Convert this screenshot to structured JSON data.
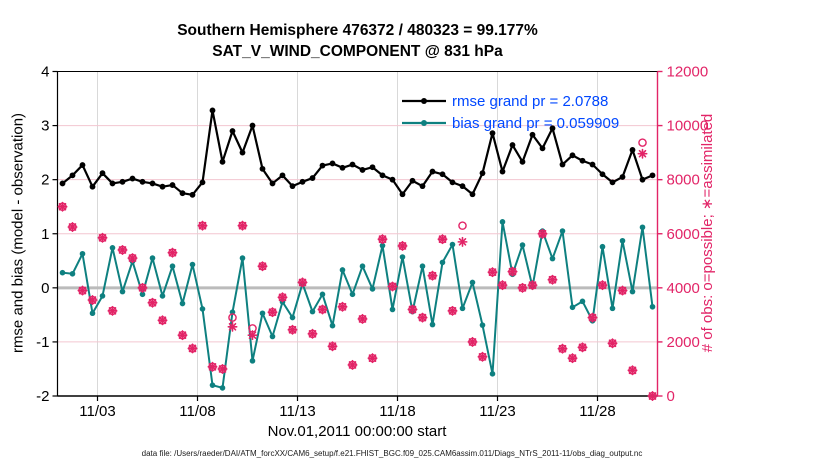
{
  "title": {
    "line1": "Southern Hemisphere 476372 / 480323 = 99.177%",
    "line2": "SAT_V_WIND_COMPONENT @ 831 hPa"
  },
  "legend": [
    {
      "label": "rmse grand pr = 2.0788",
      "series": "rmse"
    },
    {
      "label": "bias grand pr = 0.059909",
      "series": "bias"
    }
  ],
  "axes": {
    "left": {
      "label": "rmse and bias (model - observation)",
      "ticks": [
        4,
        3,
        2,
        1,
        0,
        -1,
        -2
      ],
      "range": [
        -2,
        4
      ]
    },
    "right": {
      "label": "# of obs: o=possible; ∗=assimilated",
      "ticks": [
        0,
        2000,
        4000,
        6000,
        8000,
        10000,
        12000
      ],
      "range": [
        0,
        12000
      ]
    },
    "x": {
      "label": "Nov.01,2011 00:00:00 start",
      "tick_labels": [
        "11/03",
        "11/08",
        "11/13",
        "11/18",
        "11/23",
        "11/28"
      ],
      "tick_days": [
        2,
        7,
        12,
        17,
        22,
        27
      ],
      "range_days": [
        0,
        30
      ]
    }
  },
  "footer": "data file: /Users/raeder/DAI/ATM_forcXX/CAM6_setup/f.e21.FHIST_BGC.f09_025.CAM6assim.011/Diags_NTrS_2011-11/obs_diag_output.nc",
  "colors": {
    "rmse": "#000000",
    "bias": "#0e8080",
    "obs": "#e22467",
    "legend_text": "#0047ff",
    "grid_pink": "#f3c6d0",
    "grid_vertical": "#d9d9d9",
    "zero_line": "#bbbbbb",
    "axis_black": "#000000"
  },
  "chart_data": {
    "type": "line",
    "title": "Southern Hemisphere 476372 / 480323 = 99.177% — SAT_V_WIND_COMPONENT @ 831 hPa",
    "xlabel": "Nov.01,2011 00:00:00 start",
    "ylabel_left": "rmse and bias (model - observation)",
    "ylabel_right": "# of obs: o=possible; ∗=assimilated",
    "ylim_left": [
      -2,
      4
    ],
    "ylim_right": [
      0,
      12000
    ],
    "grid": "on",
    "legend_position": "upper-right-inside",
    "x_days": [
      0.25,
      0.75,
      1.25,
      1.75,
      2.25,
      2.75,
      3.25,
      3.75,
      4.25,
      4.75,
      5.25,
      5.75,
      6.25,
      6.75,
      7.25,
      7.75,
      8.25,
      8.75,
      9.25,
      9.75,
      10.25,
      10.75,
      11.25,
      11.75,
      12.25,
      12.75,
      13.25,
      13.75,
      14.25,
      14.75,
      15.25,
      15.75,
      16.25,
      16.75,
      17.25,
      17.75,
      18.25,
      18.75,
      19.25,
      19.75,
      20.25,
      20.75,
      21.25,
      21.75,
      22.25,
      22.75,
      23.25,
      23.75,
      24.25,
      24.75,
      25.25,
      25.75,
      26.25,
      26.75,
      27.25,
      27.75,
      28.25,
      28.75,
      29.25,
      29.75
    ],
    "series": [
      {
        "name": "rmse",
        "axis": "left",
        "values": [
          1.93,
          2.08,
          2.27,
          1.87,
          2.12,
          1.93,
          1.96,
          2.02,
          1.96,
          1.93,
          1.87,
          1.9,
          1.75,
          1.72,
          1.95,
          3.28,
          2.33,
          2.9,
          2.5,
          3.0,
          2.2,
          1.93,
          2.08,
          1.88,
          1.96,
          2.03,
          2.26,
          2.3,
          2.22,
          2.28,
          2.18,
          2.23,
          2.08,
          2.0,
          1.73,
          1.98,
          1.88,
          2.15,
          2.1,
          1.95,
          1.88,
          1.73,
          2.12,
          2.86,
          2.15,
          2.64,
          2.33,
          2.83,
          2.58,
          2.95,
          2.28,
          2.45,
          2.35,
          2.28,
          2.1,
          1.95,
          2.05,
          2.55,
          2.0,
          2.08
        ]
      },
      {
        "name": "bias",
        "axis": "left",
        "values": [
          0.28,
          0.26,
          0.63,
          -0.47,
          -0.15,
          0.74,
          -0.07,
          0.49,
          -0.12,
          0.55,
          -0.15,
          0.4,
          -0.29,
          0.43,
          -0.39,
          -1.8,
          -1.85,
          -0.45,
          0.55,
          -1.35,
          -0.47,
          -0.9,
          -0.26,
          -0.55,
          0.08,
          -0.44,
          -0.12,
          -0.7,
          0.33,
          -0.12,
          0.4,
          -0.02,
          0.78,
          -0.4,
          0.57,
          -0.44,
          0.4,
          -0.68,
          0.47,
          0.8,
          -0.38,
          0.1,
          -0.69,
          -1.59,
          1.22,
          0.25,
          0.79,
          0.02,
          1.05,
          0.54,
          1.05,
          -0.36,
          -0.25,
          -0.61,
          0.76,
          -0.38,
          0.87,
          -0.07,
          1.12,
          -0.35
        ]
      }
    ],
    "counts": {
      "axis": "right",
      "marker_possible": "o",
      "marker_assimilated": "*",
      "assimilated": [
        7000,
        6250,
        3900,
        3550,
        5850,
        3150,
        5400,
        5100,
        4000,
        3450,
        2800,
        5300,
        2250,
        1760,
        6300,
        1080,
        1000,
        2560,
        6300,
        2250,
        4800,
        3100,
        3650,
        2450,
        4200,
        2300,
        3200,
        1840,
        3300,
        1150,
        2850,
        1400,
        5800,
        4050,
        5550,
        3200,
        2900,
        4450,
        5800,
        3150,
        5700,
        2000,
        1450,
        4580,
        4100,
        4600,
        4000,
        4100,
        6000,
        4300,
        1750,
        1400,
        1800,
        2900,
        4100,
        1950,
        3900,
        950,
        8960,
        0
      ],
      "possible_overrides": {
        "17": 2900,
        "19": 2500,
        "40": 6300,
        "58": 9370
      }
    },
    "zero_line": 0
  }
}
